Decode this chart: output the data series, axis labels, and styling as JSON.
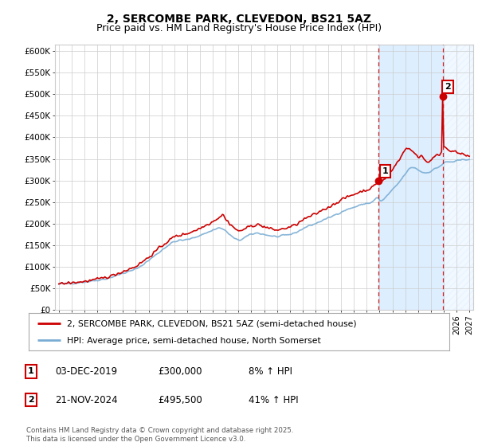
{
  "title": "2, SERCOMBE PARK, CLEVEDON, BS21 5AZ",
  "subtitle": "Price paid vs. HM Land Registry's House Price Index (HPI)",
  "title_fontsize": 10,
  "subtitle_fontsize": 9,
  "ylabel_ticks": [
    "£0",
    "£50K",
    "£100K",
    "£150K",
    "£200K",
    "£250K",
    "£300K",
    "£350K",
    "£400K",
    "£450K",
    "£500K",
    "£550K",
    "£600K"
  ],
  "ytick_values": [
    0,
    50000,
    100000,
    150000,
    200000,
    250000,
    300000,
    350000,
    400000,
    450000,
    500000,
    550000,
    600000
  ],
  "xlim": [
    1994.7,
    2027.3
  ],
  "ylim": [
    0,
    615000
  ],
  "property_line_color": "#cc0000",
  "hpi_line_color": "#7aadd4",
  "shaded_region_color": "#ddeeff",
  "shaded_x_start": 2019.92,
  "shaded_x_end": 2024.92,
  "hatch_x_start": 2024.92,
  "hatch_x_end": 2027.3,
  "marker1_x": 2019.92,
  "marker1_y": 300000,
  "marker1_label": "1",
  "marker2_x": 2024.92,
  "marker2_y": 495500,
  "marker2_label": "2",
  "dashed_line1_x": 2019.92,
  "dashed_line2_x": 2024.92,
  "legend_property": "2, SERCOMBE PARK, CLEVEDON, BS21 5AZ (semi-detached house)",
  "legend_hpi": "HPI: Average price, semi-detached house, North Somerset",
  "annotation1": [
    "1",
    "03-DEC-2019",
    "£300,000",
    "8% ↑ HPI"
  ],
  "annotation2": [
    "2",
    "21-NOV-2024",
    "£495,500",
    "41% ↑ HPI"
  ],
  "footnote": "Contains HM Land Registry data © Crown copyright and database right 2025.\nThis data is licensed under the Open Government Licence v3.0.",
  "bg_color": "#ffffff",
  "plot_bg_color": "#ffffff",
  "grid_color": "#cccccc"
}
